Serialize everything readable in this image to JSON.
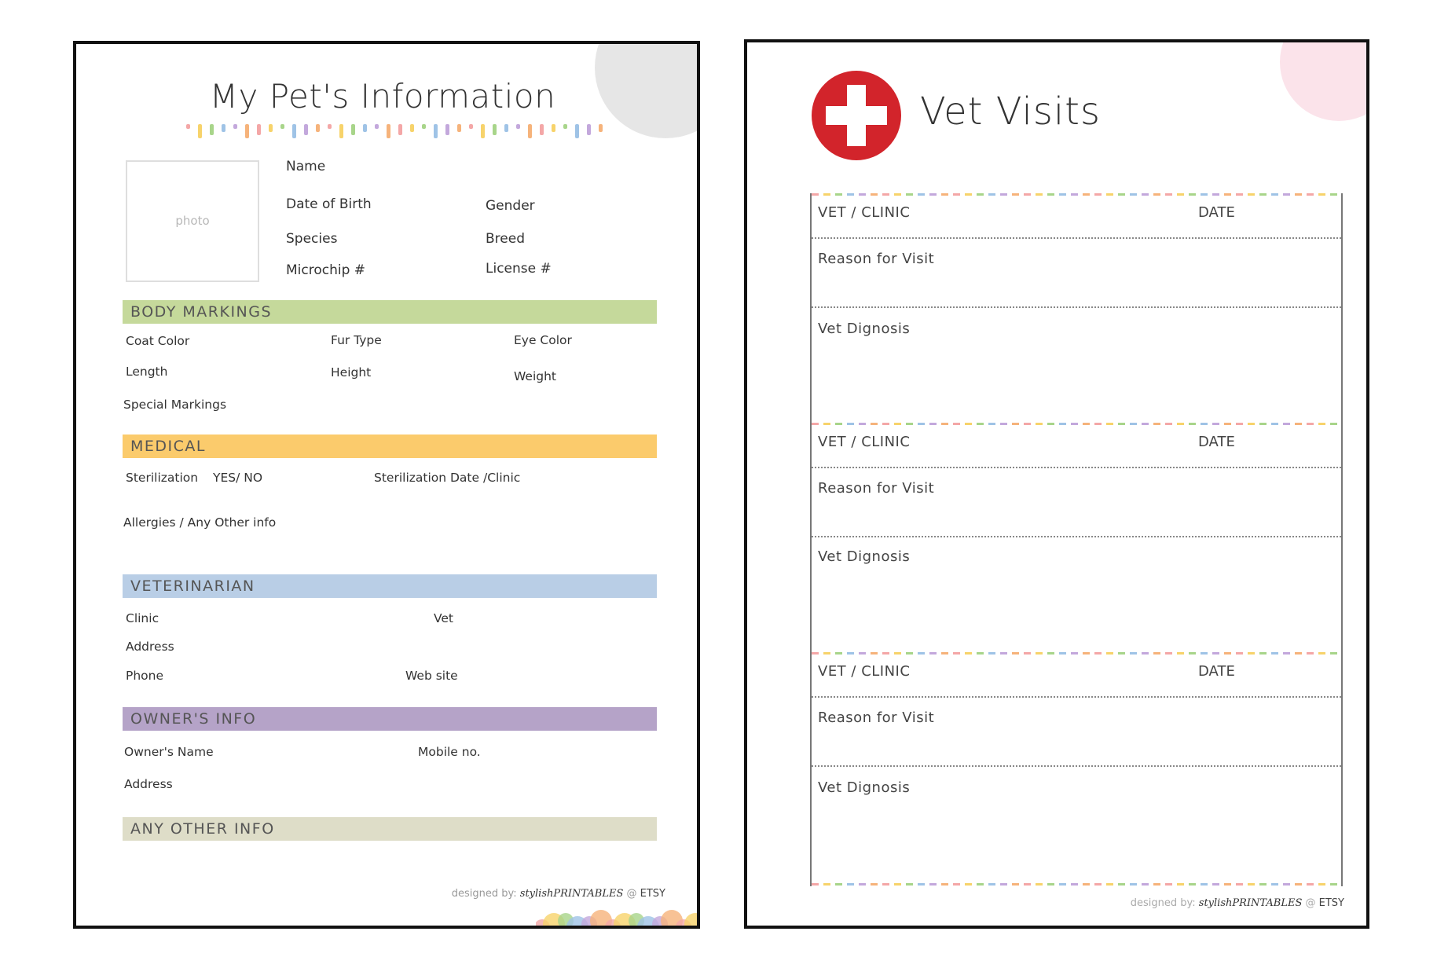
{
  "pet_info": {
    "title": "My Pet's Information",
    "photo_label": "photo",
    "fields": {
      "name": "Name",
      "date_of_birth": "Date of Birth",
      "gender": "Gender",
      "species": "Species",
      "breed": "Breed",
      "microchip": "Microchip #",
      "license": "License #"
    },
    "body_markings": {
      "heading": "BODY MARKINGS",
      "coat_color": "Coat Color",
      "fur_type": "Fur Type",
      "eye_color": "Eye Color",
      "length": "Length",
      "height": "Height",
      "weight": "Weight",
      "special_markings": "Special Markings"
    },
    "medical": {
      "heading": "MEDICAL",
      "sterilization": "Sterilization",
      "yes_no": "YES/ NO",
      "sterilization_date": "Sterilization Date /Clinic",
      "allergies": "Allergies / Any Other info"
    },
    "veterinarian": {
      "heading": "VETERINARIAN",
      "clinic": "Clinic",
      "vet": "Vet",
      "address": "Address",
      "phone": "Phone",
      "web_site": "Web site"
    },
    "owner": {
      "heading": "OWNER'S INFO",
      "owner_name": "Owner's Name",
      "mobile": "Mobile no.",
      "address": "Address"
    },
    "other": {
      "heading": "ANY OTHER INFO"
    },
    "footer": {
      "designed_by": "designed by:",
      "brand": "stylishPRINTABLES",
      "at": "@",
      "etsy": "ETSY"
    }
  },
  "vet_visits": {
    "title": "Vet Visits",
    "icon": "medical-cross-icon",
    "cross_color": "#d2242b",
    "visits": [
      {
        "vet_clinic": "VET / CLINIC",
        "date": "DATE",
        "reason": "Reason for Visit",
        "diagnosis": "Vet Dignosis"
      },
      {
        "vet_clinic": "VET / CLINIC",
        "date": "DATE",
        "reason": "Reason for Visit",
        "diagnosis": "Vet Dignosis"
      },
      {
        "vet_clinic": "VET / CLINIC",
        "date": "DATE",
        "reason": "Reason for Visit",
        "diagnosis": "Vet Dignosis"
      }
    ],
    "footer": {
      "designed_by": "designed by:",
      "brand": "stylishPRINTABLES",
      "at": "@",
      "etsy": "ETSY"
    }
  },
  "colors": {
    "body_markings": "#c5d99b",
    "medical": "#fbcb6c",
    "veterinarian": "#b9cee6",
    "owner": "#b5a3c8",
    "other": "#deddc8",
    "confetti": [
      "#f4a7a7",
      "#f7d36b",
      "#a8d58a",
      "#9fc3e6",
      "#c3a8dc",
      "#f6b37b"
    ]
  }
}
